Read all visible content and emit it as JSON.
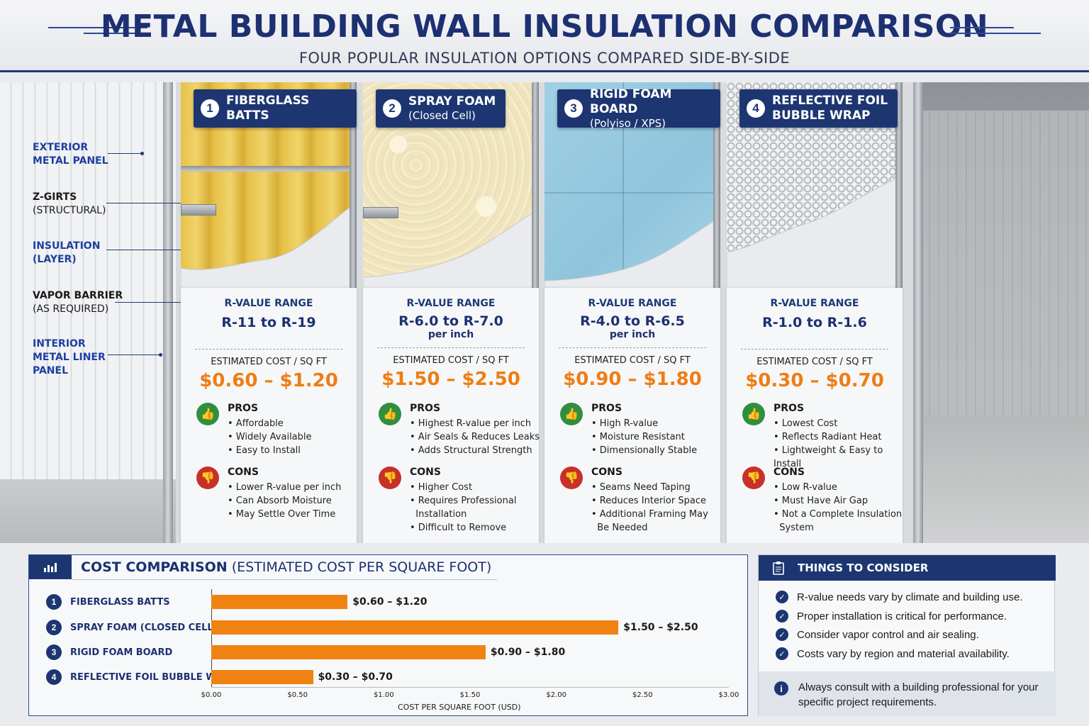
{
  "header": {
    "title": "METAL BUILDING WALL INSULATION COMPARISON",
    "subtitle": "FOUR POPULAR INSULATION OPTIONS COMPARED SIDE-BY-SIDE"
  },
  "wall_labels": [
    {
      "line1": "EXTERIOR",
      "line2": "METAL PANEL"
    },
    {
      "line1": "Z-GIRTS",
      "line2": "(STRUCTURAL)"
    },
    {
      "line1": "INSULATION",
      "line2": "(LAYER)"
    },
    {
      "line1": "VAPOR BARRIER",
      "line2": "(AS REQUIRED)"
    },
    {
      "line1": "INTERIOR",
      "line2": "METAL LINER",
      "line3": "PANEL"
    }
  ],
  "options": [
    {
      "num": "1",
      "title": "FIBERGLASS BATTS",
      "subtitle": "",
      "rvalue_label": "R-VALUE RANGE",
      "rvalue": "R-11 to R-19",
      "rvalue_unit": "",
      "cost_label": "ESTIMATED COST / SQ FT",
      "cost": "$0.60 – $1.20",
      "pros_label": "PROS",
      "pros": [
        "• Affordable",
        "• Widely Available",
        "• Easy to Install"
      ],
      "cons_label": "CONS",
      "cons": [
        "• Lower R-value per inch",
        "• Can Absorb Moisture",
        "• May Settle Over Time"
      ]
    },
    {
      "num": "2",
      "title": "SPRAY FOAM",
      "subtitle": "(Closed Cell)",
      "rvalue_label": "R-VALUE RANGE",
      "rvalue": "R-6.0 to R-7.0",
      "rvalue_unit": "per inch",
      "cost_label": "ESTIMATED COST / SQ FT",
      "cost": "$1.50 – $2.50",
      "pros_label": "PROS",
      "pros": [
        "• Highest R-value per inch",
        "• Air Seals & Reduces Leaks",
        "• Adds Structural Strength"
      ],
      "cons_label": "CONS",
      "cons": [
        "• Higher Cost",
        "• Requires Professional",
        "  Installation",
        "• Difficult to Remove"
      ]
    },
    {
      "num": "3",
      "title": "RIGID FOAM BOARD",
      "subtitle": "(Polyiso / XPS)",
      "rvalue_label": "R-VALUE RANGE",
      "rvalue": "R-4.0 to R-6.5",
      "rvalue_unit": "per inch",
      "cost_label": "ESTIMATED COST / SQ FT",
      "cost": "$0.90 – $1.80",
      "pros_label": "PROS",
      "pros": [
        "• High R-value",
        "• Moisture Resistant",
        "• Dimensionally Stable"
      ],
      "cons_label": "CONS",
      "cons": [
        "• Seams Need Taping",
        "• Reduces Interior Space",
        "• Additional Framing May",
        "  Be Needed"
      ]
    },
    {
      "num": "4",
      "title": "REFLECTIVE FOIL",
      "subtitle": "BUBBLE WRAP",
      "rvalue_label": "R-VALUE RANGE",
      "rvalue": "R-1.0 to R-1.6",
      "rvalue_unit": "",
      "cost_label": "ESTIMATED COST / SQ FT",
      "cost": "$0.30 – $0.70",
      "pros_label": "PROS",
      "pros": [
        "• Lowest Cost",
        "• Reflects Radiant Heat",
        "• Lightweight & Easy to Install"
      ],
      "cons_label": "CONS",
      "cons": [
        "• Low R-value",
        "• Must Have Air Gap",
        "• Not a Complete Insulation",
        "  System"
      ]
    }
  ],
  "cost_comparison": {
    "title_bold": "COST COMPARISON",
    "title_rest": " (ESTIMATED COST PER SQUARE FOOT)",
    "icon": "bar-chart-icon"
  },
  "chart_data": {
    "type": "bar",
    "orientation": "horizontal",
    "categories": [
      "FIBERGLASS BATTS",
      "SPRAY FOAM (CLOSED CELL)",
      "RIGID FOAM BOARD",
      "REFLECTIVE FOIL BUBBLE WRAP"
    ],
    "category_numbers": [
      "1",
      "2",
      "3",
      "4"
    ],
    "values": [
      0.79,
      2.36,
      1.59,
      0.59
    ],
    "data_labels": [
      "$0.60 – $1.20",
      "$1.50 – $2.50",
      "$0.90 – $1.80",
      "$0.30 – $0.70"
    ],
    "xlabel": "COST PER SQUARE FOOT (USD)",
    "xlim": [
      0,
      3
    ],
    "xticks": [
      "$0.00",
      "$0.50",
      "$1.00",
      "$1.50",
      "$2.00",
      "$2.50",
      "$3.00"
    ],
    "bar_color": "#f08212"
  },
  "consider": {
    "title": "THINGS TO CONSIDER",
    "icon": "clipboard-icon",
    "items": [
      "R-value needs vary by climate and building use.",
      "Proper installation is critical for performance.",
      "Consider vapor control and air sealing.",
      "Costs vary by region and material availability."
    ],
    "note": "Always consult with a building professional for your specific project requirements."
  },
  "colors": {
    "navy": "#1d3672",
    "orange": "#ef7d14",
    "pro_green": "#2f8f3f",
    "con_red": "#c8302a"
  }
}
